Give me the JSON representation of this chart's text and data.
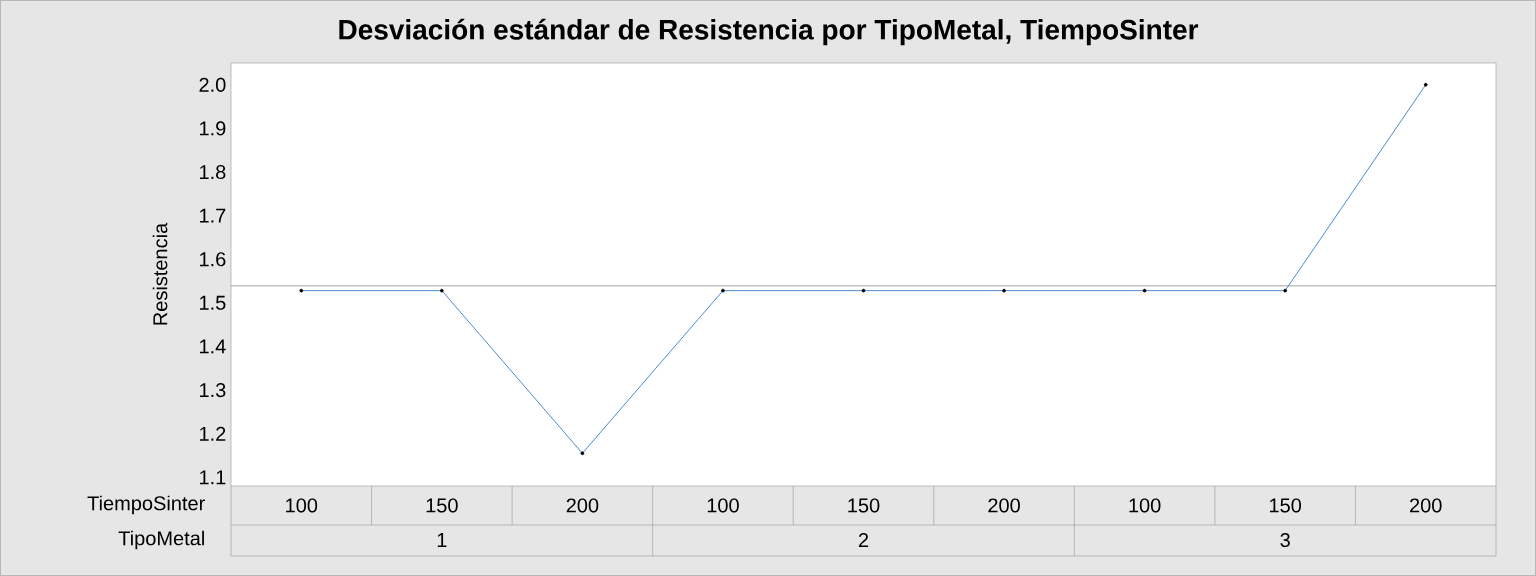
{
  "chart_data": {
    "type": "line",
    "title": "Desviación estándar de Resistencia por TipoMetal, TiempoSinter",
    "ylabel": "Resistencia",
    "categories": [
      "100",
      "150",
      "200",
      "100",
      "150",
      "200",
      "100",
      "150",
      "200"
    ],
    "series": [
      {
        "color": "#1f6fc5",
        "values": [
          1.528,
          1.528,
          1.155,
          1.528,
          1.528,
          1.528,
          1.528,
          1.528,
          2.0
        ]
      }
    ],
    "ylim": [
      1.08,
      2.05
    ],
    "yticks": [
      1.1,
      1.2,
      1.3,
      1.4,
      1.5,
      1.6,
      1.7,
      1.8,
      1.9,
      {
        "value": 2,
        "label": "2.0"
      }
    ],
    "ref_lines": [
      {
        "axis": "y",
        "value": 1.539,
        "color": "#8c8c8c"
      }
    ],
    "annotations": [
      "TiempoSinter",
      "TipoMetal",
      "1",
      "2",
      "3"
    ],
    "marker": "circle",
    "line_style": "solid",
    "grid": false
  }
}
